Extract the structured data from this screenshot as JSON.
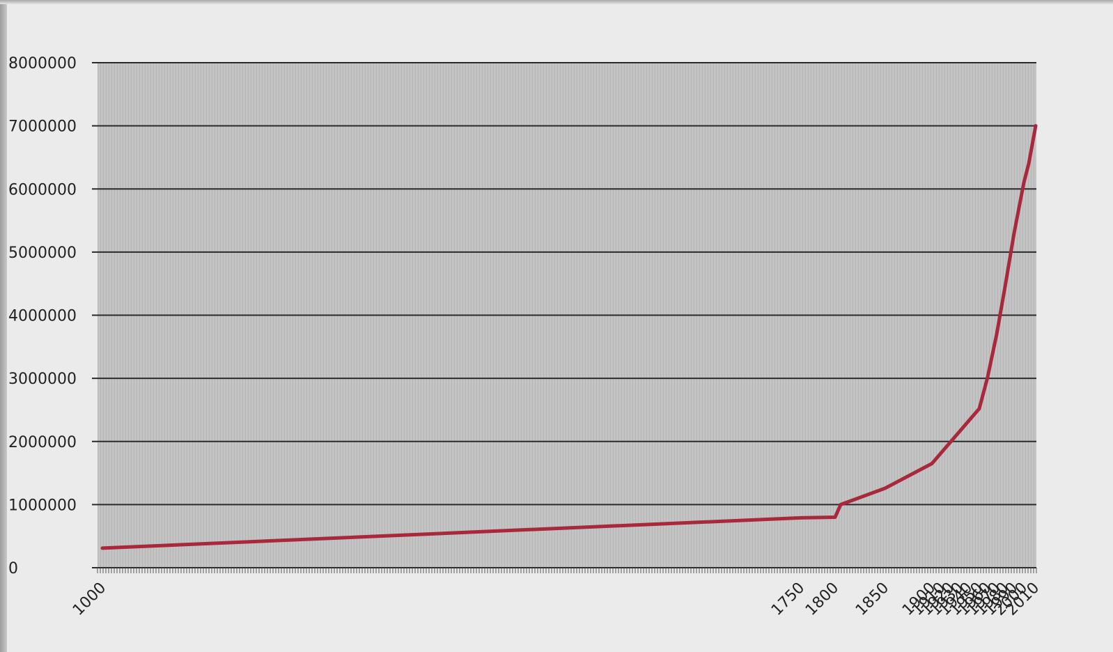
{
  "chart_data": {
    "type": "line",
    "title": "",
    "xlabel": "",
    "ylabel": "",
    "color": "#a8283c",
    "plot_background": "#c4c4c4",
    "page_background": "#ebebeb",
    "grid": true,
    "x_axis": "categorical",
    "y_ticks": [
      "0",
      "1000000",
      "2000000",
      "3000000",
      "4000000",
      "5000000",
      "6000000",
      "7000000",
      "8000000"
    ],
    "ylim": [
      0,
      8000000
    ],
    "x_tick_labels": [
      "1000",
      "1750",
      "1800",
      "1850",
      "1900",
      "1910",
      "1920",
      "1930",
      "1940",
      "1950",
      "1960",
      "1970",
      "1980",
      "1990",
      "2000",
      "2010"
    ],
    "series": [
      {
        "values": [
          {
            "x": "1000",
            "y": 310000
          },
          {
            "x": "1750",
            "y": 790000
          },
          {
            "x": "1800",
            "y": 800000
          },
          {
            "x": "1810",
            "y": 1000000
          },
          {
            "x": "1850",
            "y": 1260000
          },
          {
            "x": "1900",
            "y": 1650000
          },
          {
            "x": "1950",
            "y": 2520000
          },
          {
            "x": "1960",
            "y": 3020000
          },
          {
            "x": "1970",
            "y": 3700000
          },
          {
            "x": "1980",
            "y": 4450000
          },
          {
            "x": "1990",
            "y": 5300000
          },
          {
            "x": "2000",
            "y": 6100000
          },
          {
            "x": "2005",
            "y": 6400000
          },
          {
            "x": "2010",
            "y": 7000000
          }
        ]
      }
    ]
  }
}
